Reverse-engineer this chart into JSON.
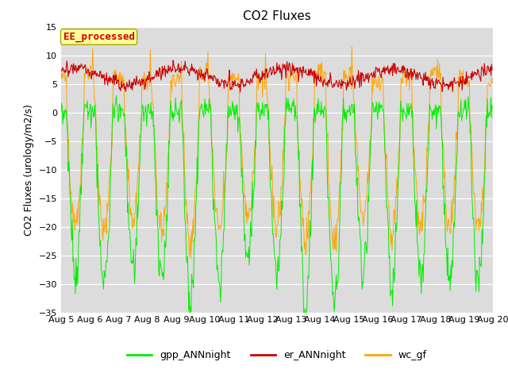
{
  "title": "CO2 Fluxes",
  "ylabel": "CO2 Fluxes (urology/m2/s)",
  "ylim": [
    -35,
    15
  ],
  "yticks": [
    -35,
    -30,
    -25,
    -20,
    -15,
    -10,
    -5,
    0,
    5,
    10,
    15
  ],
  "n_days": 15,
  "points_per_day": 48,
  "plot_bg_color": "#dcdcdc",
  "fig_bg_color": "#ffffff",
  "gpp_color": "#00ee00",
  "er_color": "#cc0000",
  "wc_color": "#ffa500",
  "legend_entries": [
    "gpp_ANNnight",
    "er_ANNnight",
    "wc_gf"
  ],
  "annotation_text": "EE_processed",
  "annotation_color": "#cc0000",
  "annotation_bg": "#ffff99",
  "annotation_border": "#aaaa00",
  "title_fontsize": 11,
  "label_fontsize": 9,
  "tick_fontsize": 8,
  "legend_fontsize": 9
}
